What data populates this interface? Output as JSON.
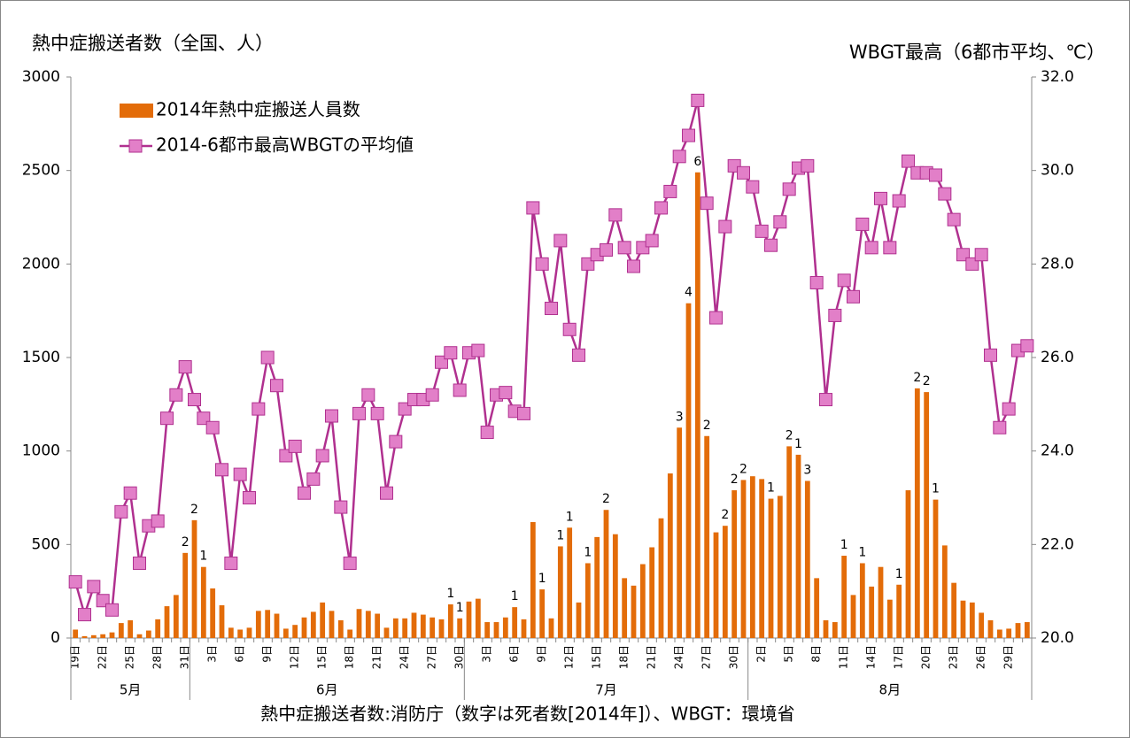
{
  "chart_data": {
    "type": "bar",
    "title": "熱中症搬送者数（全国、人）",
    "y2_title": "WBGT最高（6都市平均、℃）",
    "note": "熱中症搬送者数:消防庁（数字は死者数[2014年]）、WBGT：環境省",
    "categories": [
      "19日",
      null,
      null,
      "22日",
      null,
      null,
      "25日",
      null,
      null,
      "28日",
      null,
      null,
      "31日",
      null,
      null,
      "3日",
      null,
      null,
      "6日",
      null,
      null,
      "9日",
      null,
      null,
      "12日",
      null,
      null,
      "15日",
      null,
      null,
      "18日",
      null,
      null,
      "21日",
      null,
      null,
      "24日",
      null,
      null,
      "27日",
      null,
      null,
      "30日",
      null,
      null,
      "3日",
      null,
      null,
      "6日",
      null,
      null,
      "9日",
      null,
      null,
      "12日",
      null,
      null,
      "15日",
      null,
      null,
      "18日",
      null,
      null,
      "21日",
      null,
      null,
      "24日",
      null,
      null,
      "27日",
      null,
      null,
      "30日",
      null,
      null,
      "2日",
      null,
      null,
      "5日",
      null,
      null,
      "8日",
      null,
      null,
      "11日",
      null,
      null,
      "14日",
      null,
      null,
      "17日",
      null,
      null,
      "20日",
      null,
      null,
      "23日",
      null,
      null,
      "26日",
      null,
      null,
      "29日",
      null,
      null
    ],
    "months": [
      "5月",
      "6月",
      "7月",
      "8月"
    ],
    "series": [
      {
        "name": "2014年熱中症搬送人員数",
        "type": "bar",
        "color": "#e36c09",
        "values": [
          45,
          10,
          15,
          20,
          30,
          80,
          95,
          20,
          40,
          100,
          170,
          230,
          455,
          630,
          380,
          265,
          175,
          55,
          45,
          55,
          145,
          150,
          130,
          50,
          70,
          110,
          140,
          190,
          145,
          95,
          45,
          155,
          145,
          130,
          55,
          105,
          105,
          135,
          125,
          110,
          100,
          180,
          105,
          195,
          210,
          85,
          85,
          110,
          165,
          100,
          620,
          260,
          105,
          490,
          590,
          190,
          400,
          540,
          685,
          555,
          320,
          280,
          395,
          485,
          640,
          880,
          1125,
          1790,
          2490,
          1080,
          565,
          600,
          790,
          845,
          865,
          850,
          745,
          760,
          1025,
          980,
          840,
          320,
          95,
          85,
          440,
          230,
          400,
          275,
          380,
          205,
          285,
          790,
          1335,
          1315,
          740,
          495,
          295,
          200,
          190,
          135,
          95,
          45,
          50,
          80,
          85
        ],
        "deaths": [
          null,
          null,
          null,
          null,
          null,
          null,
          null,
          null,
          null,
          null,
          null,
          null,
          2,
          2,
          1,
          null,
          null,
          null,
          null,
          null,
          null,
          null,
          null,
          null,
          null,
          null,
          null,
          null,
          null,
          null,
          null,
          null,
          null,
          null,
          null,
          null,
          null,
          null,
          null,
          null,
          null,
          1,
          1,
          null,
          null,
          null,
          null,
          null,
          1,
          null,
          null,
          1,
          null,
          1,
          1,
          null,
          1,
          null,
          2,
          null,
          null,
          null,
          null,
          null,
          null,
          null,
          3,
          4,
          6,
          2,
          null,
          2,
          2,
          2,
          null,
          null,
          1,
          null,
          2,
          1,
          3,
          null,
          null,
          null,
          1,
          null,
          1,
          null,
          null,
          null,
          1,
          null,
          2,
          2,
          1,
          null,
          null,
          null,
          null,
          null,
          null,
          null,
          null,
          null,
          null
        ]
      },
      {
        "name": "2014-6都市最高WBGTの平均値",
        "type": "line",
        "axis": "y2",
        "color": "#b0308f",
        "marker_color": "#e27fc8",
        "values": [
          21.2,
          20.5,
          21.1,
          20.8,
          20.6,
          22.7,
          23.1,
          21.6,
          22.4,
          22.5,
          24.7,
          25.2,
          25.8,
          25.1,
          24.7,
          24.5,
          23.6,
          21.6,
          23.5,
          23.0,
          24.9,
          26.0,
          25.4,
          23.9,
          24.1,
          23.1,
          23.4,
          23.9,
          24.75,
          22.8,
          21.6,
          24.8,
          25.2,
          24.8,
          23.1,
          24.2,
          24.9,
          25.1,
          25.1,
          25.2,
          25.9,
          26.1,
          25.3,
          26.1,
          26.15,
          24.4,
          25.2,
          25.25,
          24.85,
          24.8,
          29.2,
          28.0,
          27.05,
          28.5,
          26.6,
          26.05,
          28.0,
          28.2,
          28.3,
          29.05,
          28.35,
          27.95,
          28.35,
          28.5,
          29.2,
          29.55,
          30.3,
          30.75,
          31.5,
          29.3,
          26.85,
          28.8,
          30.1,
          29.95,
          29.65,
          28.7,
          28.4,
          28.9,
          29.6,
          30.05,
          30.1,
          27.6,
          25.1,
          26.9,
          27.65,
          27.3,
          28.85,
          28.35,
          29.4,
          28.35,
          29.35,
          30.2,
          29.95,
          29.95,
          29.9,
          29.5,
          28.95,
          28.2,
          28.0,
          28.2,
          26.05,
          24.5,
          24.9,
          26.15,
          26.25
        ]
      }
    ],
    "ylim": [
      0,
      3000
    ],
    "yticks": [
      0,
      500,
      1000,
      1500,
      2000,
      2500,
      3000
    ],
    "y2lim": [
      20,
      32
    ],
    "y2ticks": [
      {
        "value": 20,
        "label": "20.0"
      },
      {
        "value": 22,
        "label": "22.0"
      },
      {
        "value": 24,
        "label": "24.0"
      },
      {
        "value": 26,
        "label": "26.0"
      },
      {
        "value": 28,
        "label": "28.0"
      },
      {
        "value": 30,
        "label": "30.0"
      },
      {
        "value": 32,
        "label": "32.0"
      }
    ],
    "grid": false,
    "legend": "top-left"
  }
}
